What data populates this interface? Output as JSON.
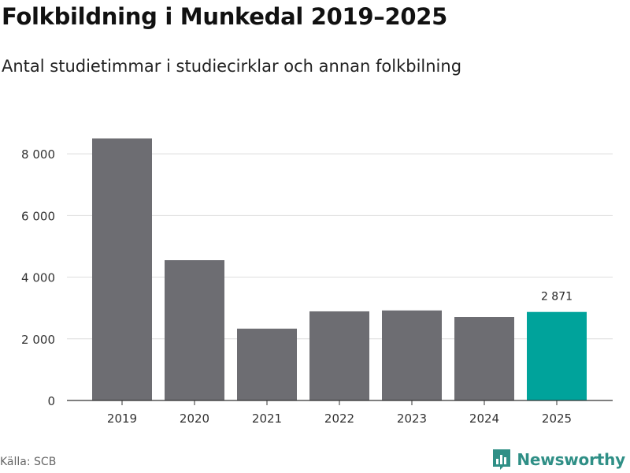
{
  "header": {
    "title": "Folkbildning i Munkedal 2019–2025",
    "subtitle": "Antal studietimmar i studiecirklar och annan folkbilning"
  },
  "footer": {
    "source": "Källa: SCB",
    "brand": "Newsworthy",
    "brand_icon": "newsworthy-logo-icon"
  },
  "colors": {
    "bar": "#6d6d72",
    "highlight": "#00a39b",
    "grid": "#dedede",
    "axis": "#333333",
    "brand": "#2f8f86"
  },
  "chart_data": {
    "type": "bar",
    "title": "Folkbildning i Munkedal 2019–2025",
    "subtitle": "Antal studietimmar i studiecirklar och annan folkbilning",
    "xlabel": "",
    "ylabel": "",
    "categories": [
      "2019",
      "2020",
      "2021",
      "2022",
      "2023",
      "2024",
      "2025"
    ],
    "values": [
      8500,
      4550,
      2330,
      2890,
      2920,
      2710,
      2871
    ],
    "highlight_index": 6,
    "data_labels": [
      {
        "index": 6,
        "text": "2 871"
      }
    ],
    "ylim": [
      0,
      9000
    ],
    "yticks": [
      0,
      2000,
      4000,
      6000,
      8000
    ],
    "ytick_labels": [
      "0",
      "2 000",
      "4 000",
      "6 000",
      "8 000"
    ],
    "grid": true
  }
}
